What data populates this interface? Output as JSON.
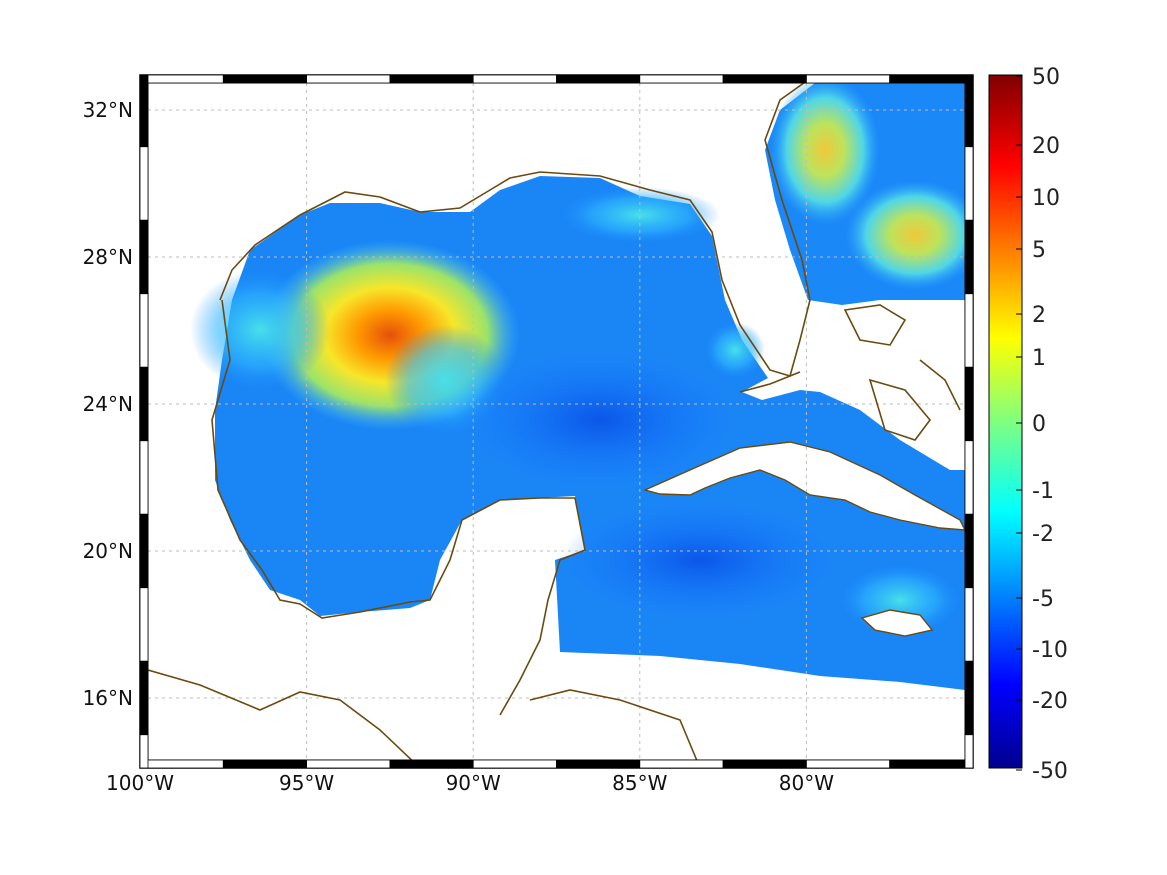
{
  "map": {
    "projection": "mercator-like",
    "extent": {
      "lon_min": -100,
      "lon_max": -75,
      "lat_min": 14,
      "lat_max": 33
    },
    "coastline_color": "#6b4a10",
    "land_color": "#ffffff",
    "grid": "dotted",
    "x_ticks": [
      {
        "value": -100,
        "label": "100°W"
      },
      {
        "value": -95,
        "label": "95°W"
      },
      {
        "value": -90,
        "label": "90°W"
      },
      {
        "value": -85,
        "label": "85°W"
      },
      {
        "value": -80,
        "label": "80°W"
      }
    ],
    "y_ticks": [
      {
        "value": 32,
        "label": "32°N"
      },
      {
        "value": 28,
        "label": "28°N"
      },
      {
        "value": 24,
        "label": "24°N"
      },
      {
        "value": 20,
        "label": "20°N"
      },
      {
        "value": 16,
        "label": "16°N"
      }
    ]
  },
  "colorbar": {
    "colormap": "jet",
    "ticks": [
      "50",
      "20",
      "10",
      "5",
      "2",
      "1",
      "0",
      "-1",
      "-2",
      "-5",
      "-10",
      "-20",
      "-50"
    ]
  }
}
